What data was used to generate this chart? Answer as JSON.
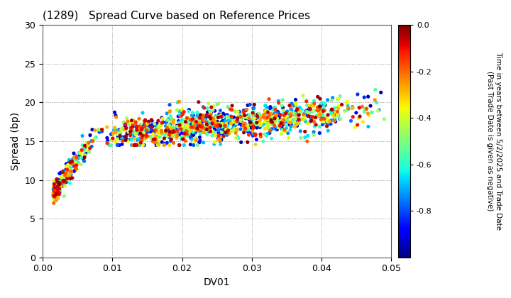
{
  "title": "(1289)   Spread Curve based on Reference Prices",
  "xlabel": "DV01",
  "ylabel": "Spread (bp)",
  "colorbar_label": "Time in years between 5/2/2025 and Trade Date\n(Past Trade Date is given as negative)",
  "xlim": [
    0.0,
    0.05
  ],
  "ylim": [
    0,
    30
  ],
  "xticks": [
    0.0,
    0.01,
    0.02,
    0.03,
    0.04,
    0.05
  ],
  "yticks": [
    0,
    5,
    10,
    15,
    20,
    25,
    30
  ],
  "cmap": "jet",
  "vmin": -1.0,
  "vmax": 0.0,
  "colorbar_ticks": [
    0.0,
    -0.2,
    -0.4,
    -0.6,
    -0.8
  ],
  "background_color": "#ffffff",
  "seed": 42,
  "n1": 280,
  "n2": 1100
}
